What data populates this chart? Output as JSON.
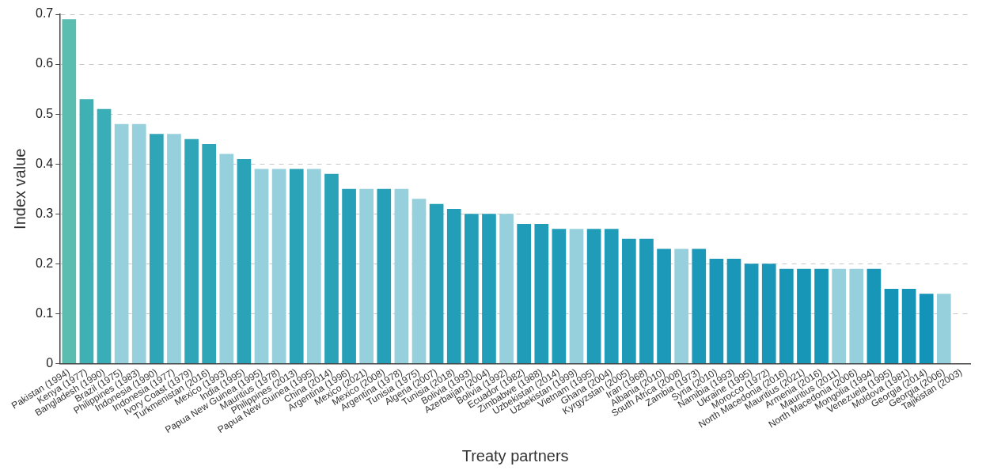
{
  "chart_data": {
    "type": "bar",
    "xlabel": "Treaty partners",
    "ylabel": "Index value",
    "categories": [
      "Pakistan (1994)",
      "Kenya (1977)",
      "Bangladesh (1990)",
      "Brazil (1975)",
      "Philippines (1983)",
      "Indonesia (1990)",
      "Indonesia (1977)",
      "Ivory Coast (1979)",
      "Turkmenistan (2016)",
      "Mexico (1993)",
      "India (1995)",
      "Papua New Guinea (1995)",
      "Mauritius (1978)",
      "Philippines (2013)",
      "Papua New Guinea (1995)",
      "China (2014)",
      "Argentina (1996)",
      "Mexico (2021)",
      "Mexico (2008)",
      "Argentina (1978)",
      "Tunisia (1975)",
      "Algeria (2007)",
      "Tunisia (2018)",
      "Bolivia (1993)",
      "Azerbaijan (2004)",
      "Bolivia (1992)",
      "Ecuador (1982)",
      "Zimbabwe (1988)",
      "Uzbekistan (2014)",
      "Uzbekistan (1999)",
      "Vietnam (1995)",
      "Ghana (2004)",
      "Kyrgyzstan (2005)",
      "Iran (1968)",
      "Albania (2010)",
      "South Africa (2008)",
      "Zambia (1973)",
      "Syria (2010)",
      "Namibia (1993)",
      "Ukraine (1995)",
      "Morocco (1972)",
      "North Macedonia (2016)",
      "Mauritius (2021)",
      "Armenia (2016)",
      "Mauritius (2011)",
      "North Macedonia (2006)",
      "Mongolia (1994)",
      "Venezuela (1995)",
      "Moldova (1981)",
      "Georgia (2014)",
      "Georgia (2006)",
      "Tajikistan (2003)"
    ],
    "values": [
      0.69,
      0.53,
      0.51,
      0.48,
      0.48,
      0.46,
      0.46,
      0.45,
      0.44,
      0.42,
      0.41,
      0.39,
      0.39,
      0.39,
      0.39,
      0.38,
      0.35,
      0.35,
      0.35,
      0.35,
      0.33,
      0.32,
      0.31,
      0.3,
      0.3,
      0.3,
      0.28,
      0.28,
      0.27,
      0.27,
      0.27,
      0.27,
      0.25,
      0.25,
      0.23,
      0.23,
      0.23,
      0.21,
      0.21,
      0.2,
      0.2,
      0.19,
      0.19,
      0.19,
      0.19,
      0.19,
      0.19,
      0.15,
      0.15,
      0.14,
      0.14,
      null
    ],
    "colors": [
      "#5bbdb0",
      "#3fb1b5",
      "#3aaeb6",
      "#96d0dc",
      "#96d0dc",
      "#2ea6b8",
      "#96d0dc",
      "#2ea6b8",
      "#2ea6b8",
      "#96d0dc",
      "#2aa3b8",
      "#96d0dc",
      "#96d0dc",
      "#2aa3b8",
      "#96d0dc",
      "#2aa3b8",
      "#26a0b8",
      "#96d0dc",
      "#26a0b8",
      "#96d0dc",
      "#96d0dc",
      "#26a0b8",
      "#239eb8",
      "#239eb8",
      "#239eb8",
      "#96d0dc",
      "#209cb8",
      "#209cb8",
      "#209cb8",
      "#96d0dc",
      "#209cb8",
      "#209cb8",
      "#1e9ab8",
      "#1e9ab8",
      "#1c98b8",
      "#96d0dc",
      "#1c98b8",
      "#1a97b8",
      "#1a97b8",
      "#1a97b8",
      "#1a97b8",
      "#1896b8",
      "#1896b8",
      "#1896b8",
      "#96d0dc",
      "#96d0dc",
      "#1896b8",
      "#1594b8",
      "#1594b8",
      "#1393b8",
      "#96d0dc",
      "#1393b8"
    ],
    "ylim": [
      0,
      0.7
    ],
    "yticks": [
      0,
      0.1,
      0.2,
      0.3,
      0.4,
      0.5,
      0.6,
      0.7
    ],
    "grid": "y",
    "legend": false
  }
}
